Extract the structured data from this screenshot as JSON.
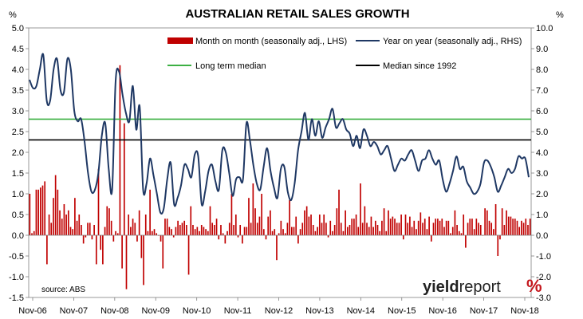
{
  "chart_data": {
    "type": "bar+line",
    "title": "AUSTRALIAN RETAIL SALES GROWTH",
    "left_unit": "%",
    "right_unit": "%",
    "source": "source: ABS",
    "logo": {
      "word1": "yield",
      "word2": "report",
      "symbol": "%"
    },
    "left_axis": {
      "min": -1.5,
      "max": 5.0,
      "ticks": [
        "-1.5",
        "-1.0",
        "-0.5",
        "0.0",
        "0.5",
        "1.0",
        "1.5",
        "2.0",
        "2.5",
        "3.0",
        "3.5",
        "4.0",
        "4.5",
        "5.0"
      ]
    },
    "right_axis": {
      "min": -3.0,
      "max": 10.0,
      "ticks": [
        "-3.0",
        "-2.0",
        "-1.0",
        "0.0",
        "1.0",
        "2.0",
        "3.0",
        "4.0",
        "5.0",
        "6.0",
        "7.0",
        "8.0",
        "9.0",
        "10.0"
      ]
    },
    "x_tick_labels": [
      "Nov-06",
      "Nov-07",
      "Nov-08",
      "Nov-09",
      "Nov-10",
      "Nov-11",
      "Nov-12",
      "Nov-13",
      "Nov-14",
      "Nov-15",
      "Nov-16",
      "Nov-17",
      "Nov-18"
    ],
    "legend": [
      {
        "name": "Month on month (seasonally adj., LHS)",
        "color": "#c00000",
        "kind": "bar"
      },
      {
        "name": "Year on year (seasonally adj., RHS)",
        "color": "#1f3864",
        "kind": "line"
      },
      {
        "name": "Long term median",
        "color": "#3cb043",
        "kind": "line"
      },
      {
        "name": "Median since 1992",
        "color": "#000000",
        "kind": "line"
      }
    ],
    "long_term_median_rhs": 5.6,
    "median_since_1992_rhs": 4.6,
    "series": [
      {
        "name": "Month on month (seasonally adj., LHS)",
        "axis": "left",
        "values": [
          1.0,
          0.05,
          0.1,
          1.1,
          1.1,
          1.15,
          1.2,
          1.3,
          -0.7,
          0.5,
          0.3,
          0.9,
          1.45,
          1.1,
          0.6,
          0.4,
          0.75,
          0.5,
          0.6,
          0.2,
          0.15,
          0.9,
          0.35,
          0.5,
          0.25,
          -0.2,
          -0.05,
          0.3,
          0.3,
          -0.1,
          0.25,
          -0.7,
          1.6,
          -0.35,
          -0.7,
          0.2,
          0.7,
          0.65,
          0.35,
          -0.15,
          0.1,
          0.05,
          4.1,
          -0.8,
          2.7,
          -1.3,
          0.5,
          0.2,
          0.4,
          0.3,
          -0.15,
          0.6,
          -0.55,
          -1.2,
          0.5,
          0.1,
          1.1,
          0.1,
          0.15,
          0.05,
          0.0,
          -0.15,
          -0.8,
          0.4,
          0.4,
          0.2,
          0.15,
          -0.05,
          0.2,
          0.35,
          0.25,
          0.3,
          0.35,
          0.25,
          -0.95,
          0.7,
          0.25,
          0.15,
          0.2,
          0.1,
          0.25,
          0.2,
          0.15,
          0.1,
          0.7,
          0.3,
          0.25,
          0.4,
          -0.1,
          0.25,
          0.05,
          -0.2,
          0.1,
          0.3,
          1.0,
          0.25,
          0.5,
          -0.05,
          0.25,
          -0.2,
          0.2,
          0.2,
          0.9,
          0.3,
          1.25,
          0.65,
          0.3,
          0.45,
          1.0,
          0.15,
          -0.1,
          0.45,
          0.6,
          0.1,
          0.15,
          -0.6,
          0.05,
          0.35,
          0.15,
          0.05,
          0.3,
          0.85,
          0.2,
          0.2,
          0.45,
          -0.2,
          0.15,
          0.3,
          0.6,
          0.7,
          0.45,
          0.5,
          0.25,
          0.1,
          0.2,
          0.5,
          0.3,
          0.5,
          0.3,
          -0.05,
          0.35,
          0.1,
          0.25,
          0.65,
          1.1,
          0.3,
          0.1,
          0.6,
          0.2,
          0.25,
          0.4,
          0.4,
          0.5,
          0.2,
          1.25,
          0.3,
          0.7,
          0.3,
          0.2,
          0.45,
          0.2,
          0.35,
          0.25,
          0.1,
          0.35,
          0.65,
          0.1,
          0.6,
          0.4,
          0.45,
          0.4,
          0.3,
          0.3,
          0.5,
          -0.1,
          0.5,
          0.3,
          0.45,
          0.2,
          0.35,
          0.15,
          0.35,
          0.55,
          0.3,
          0.4,
          0.15,
          0.45,
          -0.15,
          0.3,
          0.4,
          0.4,
          0.35,
          0.4,
          0.2,
          0.35,
          0.35,
          0.05,
          0.2,
          0.6,
          0.25,
          0.1,
          0.05,
          0.5,
          -0.3,
          0.3,
          0.4,
          0.4,
          0.15,
          0.4,
          0.3,
          0.25,
          0.0,
          0.65,
          0.6,
          0.35,
          0.3,
          0.15,
          0.75,
          -0.5,
          -0.1,
          0.65,
          0.25,
          0.6,
          0.45,
          0.45,
          0.4,
          0.4,
          0.35,
          0.2,
          0.35,
          0.3,
          0.4,
          0.25,
          0.4
        ],
        "color": "#c00000"
      },
      {
        "name": "Year on year (seasonally adj., RHS)",
        "axis": "right",
        "x": [
          0,
          1,
          2,
          3,
          4,
          5,
          6,
          7,
          8,
          9,
          10,
          11,
          12,
          13,
          14,
          15,
          16,
          17,
          18,
          19,
          20,
          21,
          22,
          23,
          24,
          25,
          26,
          27,
          28,
          29,
          30,
          31,
          32,
          33,
          34,
          35,
          36,
          37,
          38,
          39,
          40,
          41,
          42,
          43,
          44,
          45,
          46,
          47,
          48,
          49,
          50,
          51,
          52,
          53,
          54,
          55,
          56,
          57,
          58,
          59,
          60,
          61,
          62,
          63,
          64,
          65,
          66,
          67,
          68,
          69,
          70,
          71,
          72,
          73,
          74,
          75,
          76,
          77,
          78,
          79,
          80,
          81,
          82,
          83,
          84,
          85,
          86,
          87,
          88,
          89,
          90,
          91,
          92,
          93,
          94,
          95,
          96,
          97,
          98,
          99,
          100,
          101,
          102,
          103,
          104,
          105,
          106,
          107,
          108,
          109,
          110,
          111,
          112,
          113,
          114,
          115,
          116,
          117,
          118,
          119,
          120,
          121,
          122,
          123,
          124,
          125,
          126,
          127,
          128,
          129,
          130,
          131,
          132,
          133,
          134,
          135,
          136,
          137,
          138,
          139,
          140,
          141,
          142,
          143,
          144,
          145
        ],
        "values": [
          7.5,
          7.1,
          7.2,
          8.0,
          8.7,
          6.5,
          6.5,
          8.0,
          8.5,
          7.0,
          6.9,
          8.5,
          8.0,
          6.0,
          5.5,
          5.6,
          4.5,
          3.0,
          2.1,
          2.2,
          3.0,
          4.8,
          5.4,
          3.2,
          2.2,
          7.4,
          7.9,
          6.8,
          5.9,
          5.5,
          7.2,
          5.1,
          6.2,
          2.2,
          2.5,
          3.7,
          2.9,
          2.0,
          1.1,
          1.3,
          2.7,
          3.5,
          1.5,
          1.8,
          2.4,
          3.4,
          3.2,
          2.8,
          3.9,
          3.8,
          1.5,
          2.1,
          3.1,
          3.4,
          2.6,
          2.2,
          4.1,
          4.0,
          3.0,
          1.9,
          2.7,
          2.8,
          2.7,
          5.4,
          4.6,
          3.4,
          2.5,
          2.2,
          3.3,
          4.2,
          3.1,
          2.3,
          1.8,
          3.2,
          3.3,
          2.1,
          1.7,
          2.5,
          4.1,
          5.0,
          5.9,
          4.6,
          5.6,
          4.8,
          5.5,
          4.7,
          5.2,
          5.6,
          6.1,
          5.2,
          5.4,
          5.6,
          5.1,
          4.9,
          4.3,
          4.8,
          4.2,
          5.1,
          4.8,
          4.3,
          4.5,
          4.3,
          3.9,
          4.1,
          4.3,
          3.7,
          3.1,
          3.4,
          3.7,
          3.6,
          3.9,
          4.1,
          3.6,
          3.1,
          3.6,
          3.7,
          4.1,
          3.7,
          3.4,
          3.6,
          2.7,
          2.1,
          2.5,
          3.1,
          3.8,
          3.2,
          3.3,
          2.6,
          2.3,
          2.0,
          2.1,
          2.5,
          3.5,
          3.6,
          3.3,
          2.8,
          2.1,
          2.4,
          2.8,
          3.2,
          3.0,
          3.2,
          3.8,
          3.7,
          3.7,
          2.8
        ]
      }
    ]
  }
}
